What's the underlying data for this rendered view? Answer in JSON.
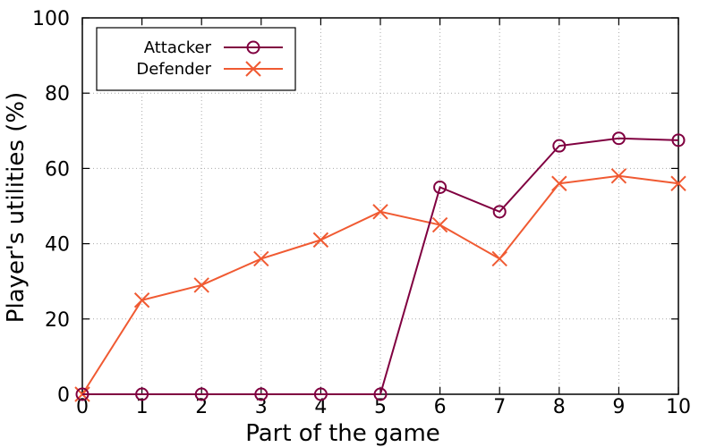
{
  "chart_data": {
    "type": "line",
    "title": "",
    "xlabel": "Part of the game",
    "ylabel": "Player's utilities (%)",
    "xlim": [
      0,
      10
    ],
    "ylim": [
      0,
      100
    ],
    "xticks": [
      0,
      1,
      2,
      3,
      4,
      5,
      6,
      7,
      8,
      9,
      10
    ],
    "yticks": [
      0,
      20,
      40,
      60,
      80,
      100
    ],
    "grid": true,
    "legend_position": "top-left",
    "series": [
      {
        "name": "Attacker",
        "color": "#800040",
        "marker": "circle",
        "x": [
          0,
          1,
          2,
          3,
          4,
          5,
          6,
          7,
          8,
          9,
          10
        ],
        "y": [
          0,
          0,
          0,
          0,
          0,
          0,
          55,
          48.5,
          66,
          68,
          67.5
        ]
      },
      {
        "name": "Defender",
        "color": "#f05a32",
        "marker": "x",
        "x": [
          0,
          1,
          2,
          3,
          4,
          5,
          6,
          7,
          8,
          9,
          10
        ],
        "y": [
          0,
          25,
          29,
          36,
          41,
          48.5,
          45,
          36,
          56,
          58,
          56
        ]
      }
    ]
  }
}
